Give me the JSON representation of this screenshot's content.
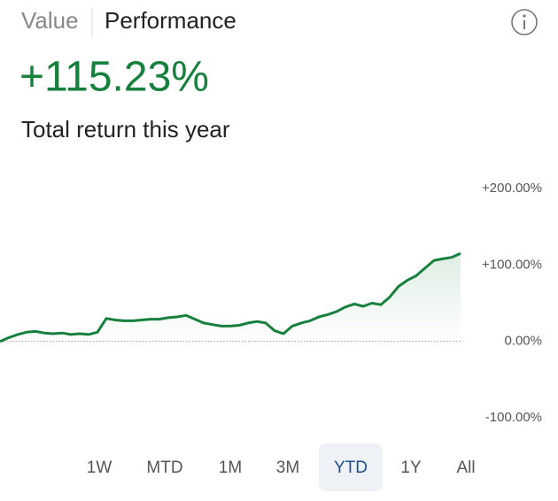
{
  "tabs": [
    "Value",
    "Performance"
  ],
  "active_tab": 1,
  "headline": "+115.23%",
  "subtitle": "Total return this year",
  "chart_data": {
    "type": "line",
    "ylim": [
      -100,
      200
    ],
    "yticks": [
      {
        "value": 200,
        "label": "+200.00%"
      },
      {
        "value": 100,
        "label": "+100.00%"
      },
      {
        "value": 0,
        "label": "0.00%"
      },
      {
        "value": -100,
        "label": "-100.00%"
      }
    ],
    "series": [
      {
        "color": "#16803c",
        "values": [
          0,
          5,
          9,
          12,
          13,
          11,
          10,
          11,
          9,
          10,
          9,
          12,
          30,
          28,
          27,
          27,
          28,
          29,
          29,
          31,
          32,
          34,
          29,
          24,
          22,
          20,
          20,
          21,
          24,
          26,
          24,
          14,
          10,
          20,
          24,
          27,
          32,
          35,
          39,
          45,
          49,
          46,
          50,
          48,
          58,
          72,
          80,
          86,
          96,
          106,
          108,
          110,
          115.23
        ]
      }
    ]
  },
  "ranges": [
    "1W",
    "MTD",
    "1M",
    "3M",
    "YTD",
    "1Y",
    "All"
  ],
  "selected_range": 4
}
